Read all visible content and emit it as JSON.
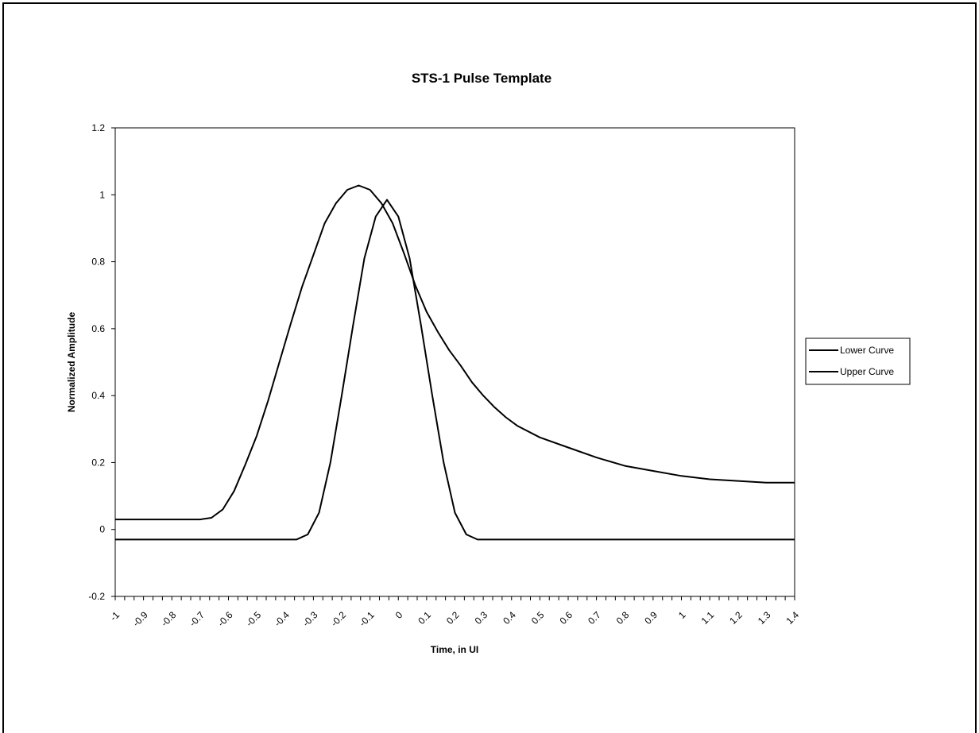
{
  "chart_data": {
    "type": "line",
    "title": "STS-1 Pulse Template",
    "xlabel": "Time, in UI",
    "ylabel": "Normalized Amplitude",
    "xlim": [
      -1,
      1.4
    ],
    "ylim": [
      -0.2,
      1.2
    ],
    "y_ticks": [
      "-0.2",
      "0",
      "0.2",
      "0.4",
      "0.6",
      "0.8",
      "1",
      "1.2"
    ],
    "x_tick_labels": [
      "-1",
      "-0.9",
      "-0.8",
      "-0.7",
      "-0.6",
      "-0.5",
      "-0.4",
      "-0.3",
      "-0.2",
      "-0.1",
      "0",
      "0.1",
      "0.2",
      "0.3",
      "0.4",
      "0.5",
      "0.6",
      "0.7",
      "0.8",
      "0.9",
      "1",
      "1.1",
      "1.2",
      "1.3",
      "1.4"
    ],
    "grid": false,
    "legend_position": "right",
    "line_color": "#000000",
    "series": [
      {
        "name": "Lower Curve",
        "x": [
          -1.0,
          -0.9,
          -0.8,
          -0.7,
          -0.6,
          -0.5,
          -0.4,
          -0.36,
          -0.32,
          -0.28,
          -0.24,
          -0.2,
          -0.16,
          -0.12,
          -0.08,
          -0.04,
          0.0,
          0.04,
          0.08,
          0.12,
          0.16,
          0.2,
          0.24,
          0.28,
          0.32,
          0.36,
          0.4,
          0.5,
          0.6,
          0.7,
          0.8,
          0.9,
          1.0,
          1.1,
          1.2,
          1.3,
          1.4
        ],
        "y": [
          -0.03,
          -0.03,
          -0.03,
          -0.03,
          -0.03,
          -0.03,
          -0.03,
          -0.03,
          -0.015,
          0.05,
          0.2,
          0.4,
          0.61,
          0.81,
          0.935,
          0.985,
          0.935,
          0.81,
          0.61,
          0.4,
          0.2,
          0.05,
          -0.015,
          -0.03,
          -0.03,
          -0.03,
          -0.03,
          -0.03,
          -0.03,
          -0.03,
          -0.03,
          -0.03,
          -0.03,
          -0.03,
          -0.03,
          -0.03,
          -0.03
        ]
      },
      {
        "name": "Upper Curve",
        "x": [
          -1.0,
          -0.9,
          -0.8,
          -0.7,
          -0.66,
          -0.62,
          -0.58,
          -0.54,
          -0.5,
          -0.46,
          -0.42,
          -0.38,
          -0.34,
          -0.3,
          -0.26,
          -0.22,
          -0.18,
          -0.14,
          -0.1,
          -0.06,
          -0.02,
          0.02,
          0.06,
          0.1,
          0.14,
          0.18,
          0.22,
          0.26,
          0.3,
          0.34,
          0.38,
          0.42,
          0.5,
          0.6,
          0.7,
          0.8,
          0.9,
          1.0,
          1.1,
          1.2,
          1.3,
          1.4
        ],
        "y": [
          0.03,
          0.03,
          0.03,
          0.03,
          0.035,
          0.06,
          0.115,
          0.195,
          0.28,
          0.385,
          0.5,
          0.615,
          0.725,
          0.82,
          0.915,
          0.975,
          1.015,
          1.028,
          1.015,
          0.975,
          0.915,
          0.825,
          0.73,
          0.65,
          0.59,
          0.535,
          0.49,
          0.44,
          0.4,
          0.365,
          0.335,
          0.31,
          0.275,
          0.245,
          0.215,
          0.19,
          0.175,
          0.16,
          0.15,
          0.145,
          0.14,
          0.14
        ]
      }
    ]
  }
}
